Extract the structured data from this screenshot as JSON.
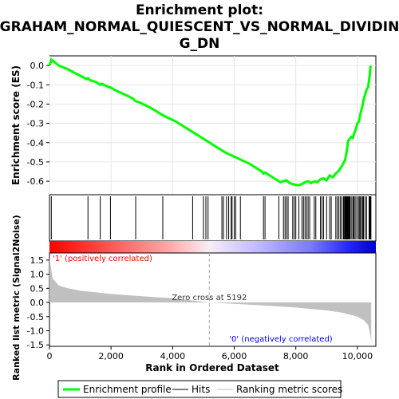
{
  "chart_data": {
    "type": "line",
    "title_lines": [
      "Enrichment plot:",
      "GRAHAM_NORMAL_QUIESCENT_VS_NORMAL_DIVIDIN",
      "G_DN"
    ],
    "xlabel": "Rank in Ordered Dataset",
    "xlim": [
      0,
      10600
    ],
    "x_ticks": [
      0,
      2000,
      4000,
      6000,
      8000,
      10000
    ],
    "x_tick_labels": [
      "0",
      "2,000",
      "4,000",
      "6,000",
      "8,000",
      "10,000"
    ],
    "es_panel": {
      "ylabel": "Enrichment score (ES)",
      "ylim": [
        -0.67,
        0.05
      ],
      "y_ticks": [
        0.0,
        -0.1,
        -0.2,
        -0.3,
        -0.4,
        -0.5,
        -0.6
      ],
      "y_tick_labels": [
        "0.0",
        "-0.1",
        "-0.2",
        "-0.3",
        "-0.4",
        "-0.5",
        "-0.6"
      ],
      "series_name": "Enrichment profile",
      "color": "#00ff00",
      "grid": true,
      "x": [
        0,
        50,
        60,
        100,
        300,
        600,
        900,
        1200,
        1250,
        1300,
        1500,
        1650,
        1700,
        1900,
        2000,
        2100,
        2300,
        2500,
        2700,
        2800,
        2900,
        3100,
        3300,
        3500,
        3700,
        3900,
        4100,
        4300,
        4500,
        4700,
        4900,
        5100,
        5300,
        5500,
        5700,
        5900,
        6100,
        6300,
        6500,
        6700,
        6900,
        6950,
        7000,
        7200,
        7400,
        7500,
        7600,
        7700,
        7800,
        7900,
        8000,
        8100,
        8200,
        8300,
        8400,
        8500,
        8600,
        8700,
        8800,
        8900,
        9000,
        9100,
        9200,
        9300,
        9400,
        9500,
        9600,
        9650,
        9700,
        9750,
        9800,
        9850,
        9900,
        9950,
        10000,
        10050,
        10100,
        10150,
        10200,
        10250,
        10300,
        10350,
        10400,
        10430
      ],
      "y": [
        0.0,
        0.02,
        0.03,
        0.025,
        0.0,
        -0.02,
        -0.045,
        -0.07,
        -0.065,
        -0.075,
        -0.085,
        -0.1,
        -0.095,
        -0.11,
        -0.115,
        -0.125,
        -0.14,
        -0.155,
        -0.17,
        -0.185,
        -0.19,
        -0.205,
        -0.22,
        -0.24,
        -0.26,
        -0.275,
        -0.29,
        -0.31,
        -0.33,
        -0.35,
        -0.37,
        -0.39,
        -0.41,
        -0.43,
        -0.45,
        -0.465,
        -0.48,
        -0.495,
        -0.51,
        -0.53,
        -0.55,
        -0.56,
        -0.555,
        -0.575,
        -0.595,
        -0.605,
        -0.6,
        -0.595,
        -0.61,
        -0.615,
        -0.62,
        -0.62,
        -0.615,
        -0.605,
        -0.6,
        -0.61,
        -0.6,
        -0.605,
        -0.59,
        -0.585,
        -0.595,
        -0.57,
        -0.58,
        -0.56,
        -0.545,
        -0.52,
        -0.49,
        -0.45,
        -0.39,
        -0.38,
        -0.37,
        -0.375,
        -0.35,
        -0.33,
        -0.3,
        -0.29,
        -0.25,
        -0.22,
        -0.18,
        -0.15,
        -0.125,
        -0.11,
        -0.05,
        0.0
      ]
    },
    "hits": [
      60,
      1250,
      1650,
      1980,
      2800,
      3680,
      4650,
      5000,
      5080,
      5150,
      5600,
      5650,
      5750,
      5820,
      5900,
      5930,
      6000,
      6050,
      6200,
      6950,
      7000,
      7450,
      7600,
      7650,
      7700,
      7750,
      7900,
      7950,
      8000,
      8100,
      8200,
      8250,
      8300,
      8350,
      8400,
      8450,
      8600,
      8650,
      8800,
      8850,
      8900,
      9000,
      9100,
      9150,
      9300,
      9350,
      9400,
      9450,
      9500,
      9550,
      9580,
      9600,
      9620,
      9640,
      9660,
      9680,
      9700,
      9720,
      9740,
      9760,
      9800,
      9850,
      9880,
      9900,
      9950,
      10000,
      10050,
      10080,
      10100,
      10150,
      10180,
      10200,
      10250,
      10300,
      10380,
      10400,
      10420,
      10440
    ],
    "ranked_metric": {
      "ylabel": "Ranked list metric (Signal2Noise)",
      "series_name": "Ranking metric scores",
      "ylim": [
        -1.55,
        1.75
      ],
      "y_ticks": [
        1.5,
        1.0,
        0.5,
        0.0,
        -0.5,
        -1.0,
        -1.5
      ],
      "y_tick_labels": [
        "1.5",
        "1.0",
        "0.5",
        "0.0",
        "-0.5",
        "-1.0",
        "-1.5"
      ],
      "x": [
        0,
        100,
        300,
        600,
        1000,
        2000,
        3000,
        4000,
        5192,
        6000,
        7000,
        8000,
        9000,
        9500,
        10000,
        10200,
        10350,
        10430,
        10450
      ],
      "y": [
        1.6,
        0.85,
        0.6,
        0.5,
        0.42,
        0.3,
        0.22,
        0.15,
        0.0,
        -0.05,
        -0.11,
        -0.18,
        -0.28,
        -0.36,
        -0.5,
        -0.62,
        -0.8,
        -1.2,
        -1.4
      ],
      "zero_cross_label": "Zero cross at 5192",
      "zero_cross": 5192,
      "positive_label": "'1' (positively correlated)",
      "negative_label": "'0' (negatively correlated)",
      "positive_color": "#ff0000",
      "negative_color": "#0000ff"
    },
    "legend": {
      "placement": "bottom",
      "items": [
        {
          "label": "Enrichment profile",
          "color": "#00ff00",
          "style": "line"
        },
        {
          "label": "Hits",
          "color": "#000000",
          "style": "line"
        },
        {
          "label": "Ranking metric scores",
          "color": "#c0c0c0",
          "style": "line"
        }
      ]
    }
  }
}
